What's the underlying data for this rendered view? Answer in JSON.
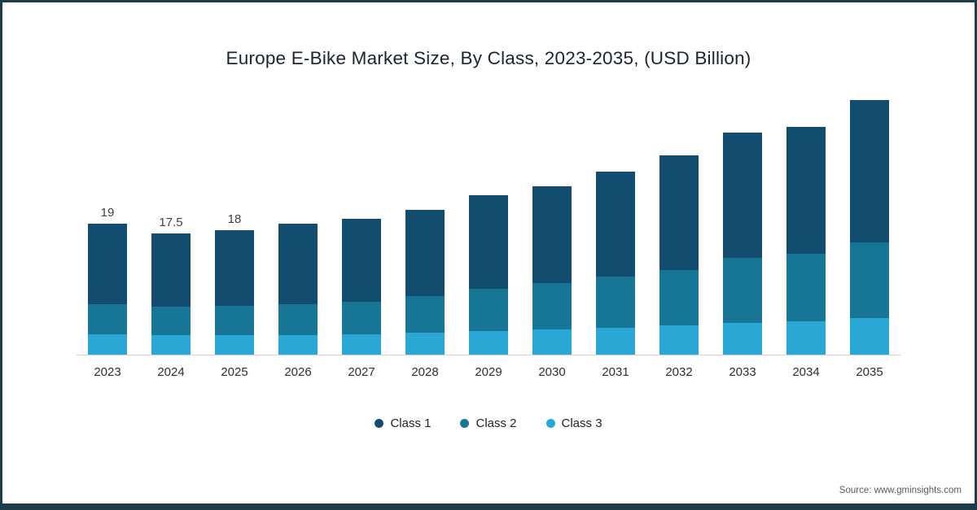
{
  "title": "Europe E-Bike Market Size, By Class, 2023-2035, (USD Billion)",
  "source": "Source: www.gminsights.com",
  "colors": {
    "class1": "#124d6f",
    "class2": "#177596",
    "class3": "#2aa7d4",
    "frame_border": "#1e3d4a",
    "axis_line": "#cfd4d8"
  },
  "chart_data": {
    "type": "bar",
    "stacked": true,
    "title": "Europe E-Bike Market Size, By Class, 2023-2035, (USD Billion)",
    "xlabel": "",
    "ylabel": "USD Billion",
    "legend_position": "bottom",
    "grid": false,
    "categories": [
      "2023",
      "2024",
      "2025",
      "2026",
      "2027",
      "2028",
      "2029",
      "2030",
      "2031",
      "2032",
      "2033",
      "2034",
      "2035"
    ],
    "series": [
      {
        "name": "Class 1",
        "color": "#124d6f",
        "values": [
          11.7,
          10.6,
          10.9,
          11.6,
          12.1,
          12.4,
          13.6,
          14.0,
          15.2,
          16.5,
          18.1,
          18.3,
          20.6
        ]
      },
      {
        "name": "Class 2",
        "color": "#177596",
        "values": [
          4.3,
          4.1,
          4.3,
          4.5,
          4.6,
          5.3,
          6.1,
          6.7,
          7.4,
          8.1,
          9.4,
          9.8,
          10.9
        ]
      },
      {
        "name": "Class 3",
        "color": "#2aa7d4",
        "values": [
          3.0,
          2.8,
          2.8,
          2.8,
          3.0,
          3.2,
          3.4,
          3.6,
          3.9,
          4.2,
          4.6,
          4.8,
          5.3
        ]
      }
    ],
    "totals": [
      19,
      17.5,
      18,
      18.9,
      19.7,
      20.9,
      23.1,
      24.3,
      26.5,
      28.8,
      32.1,
      32.9,
      36.8
    ],
    "data_labels": [
      "19",
      "17.5",
      "18",
      "",
      "",
      "",
      "",
      "",
      "",
      "",
      "",
      "",
      ""
    ],
    "ylim": [
      0,
      39
    ]
  },
  "legend": {
    "items": [
      {
        "label": "Class 1",
        "color": "#124d6f"
      },
      {
        "label": "Class 2",
        "color": "#177596"
      },
      {
        "label": "Class 3",
        "color": "#2aa7d4"
      }
    ]
  }
}
